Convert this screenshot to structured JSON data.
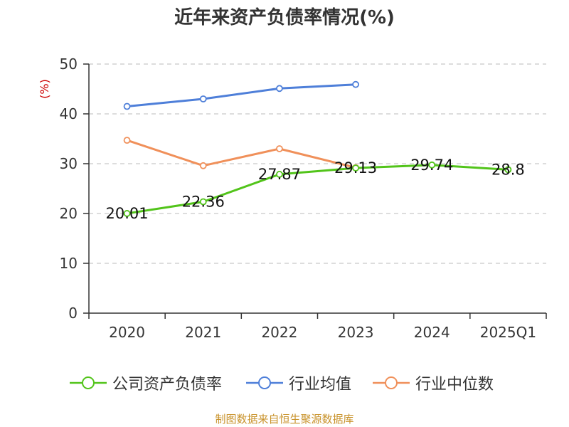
{
  "chart_data": {
    "type": "line",
    "title": "近年来资产负债率情况(%)",
    "ylabel": "(%)",
    "xlabel": "",
    "categories": [
      "2020",
      "2021",
      "2022",
      "2023",
      "2024",
      "2025Q1"
    ],
    "ylim": [
      0,
      50
    ],
    "yticks": [
      0,
      10,
      20,
      30,
      40,
      50
    ],
    "grid": true,
    "legend_position": "bottom",
    "series": [
      {
        "name": "公司资产负债率",
        "color": "#52c41a",
        "values": [
          20.01,
          22.36,
          27.87,
          29.13,
          29.74,
          28.8
        ],
        "labels": [
          "20.01",
          "22.36",
          "27.87",
          "29.13",
          "29.74",
          "28.8"
        ],
        "show_labels": true
      },
      {
        "name": "行业均值",
        "color": "#4e7fd9",
        "values": [
          41.5,
          43.0,
          45.1,
          45.9,
          null,
          null
        ],
        "show_labels": false
      },
      {
        "name": "行业中位数",
        "color": "#f0905a",
        "values": [
          34.7,
          29.6,
          33.0,
          29.2,
          null,
          null
        ],
        "show_labels": false
      }
    ]
  },
  "legend": {
    "items": [
      "公司资产负债率",
      "行业均值",
      "行业中位数"
    ]
  },
  "source_note": "制图数据来自恒生聚源数据库"
}
